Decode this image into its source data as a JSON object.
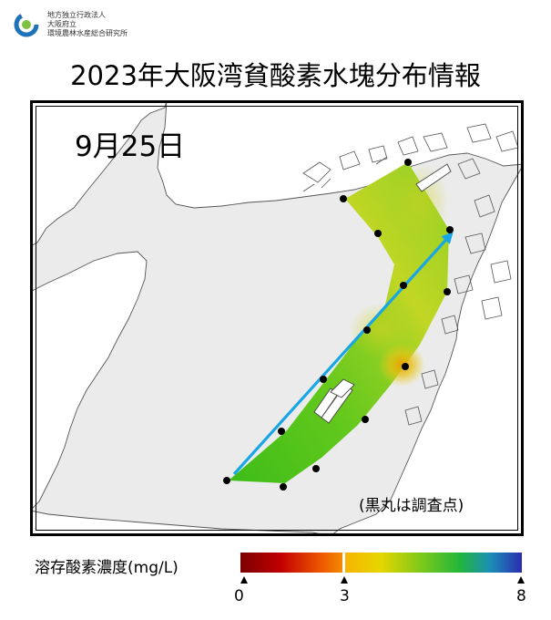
{
  "header": {
    "org_lines": [
      "地方独立行政法人",
      "大阪府立",
      "環境農林水産総合研究所"
    ]
  },
  "title": "2023年大阪湾貧酸素水塊分布情報",
  "map": {
    "date_label": "9月25日",
    "note": "(黒丸は調査点)"
  },
  "legend": {
    "label": "溶存酸素濃度(mg/L)",
    "ticks": [
      "0",
      "3",
      "8"
    ]
  },
  "colors": {
    "land": "#ffffff",
    "sea": "#ebebeb",
    "arrow": "#19a6e4",
    "low_oxygen": "#d80000",
    "mid_oxygen": "#f7d300",
    "high_oxygen": "#55c21a",
    "max_oxygen": "#3030b0"
  }
}
